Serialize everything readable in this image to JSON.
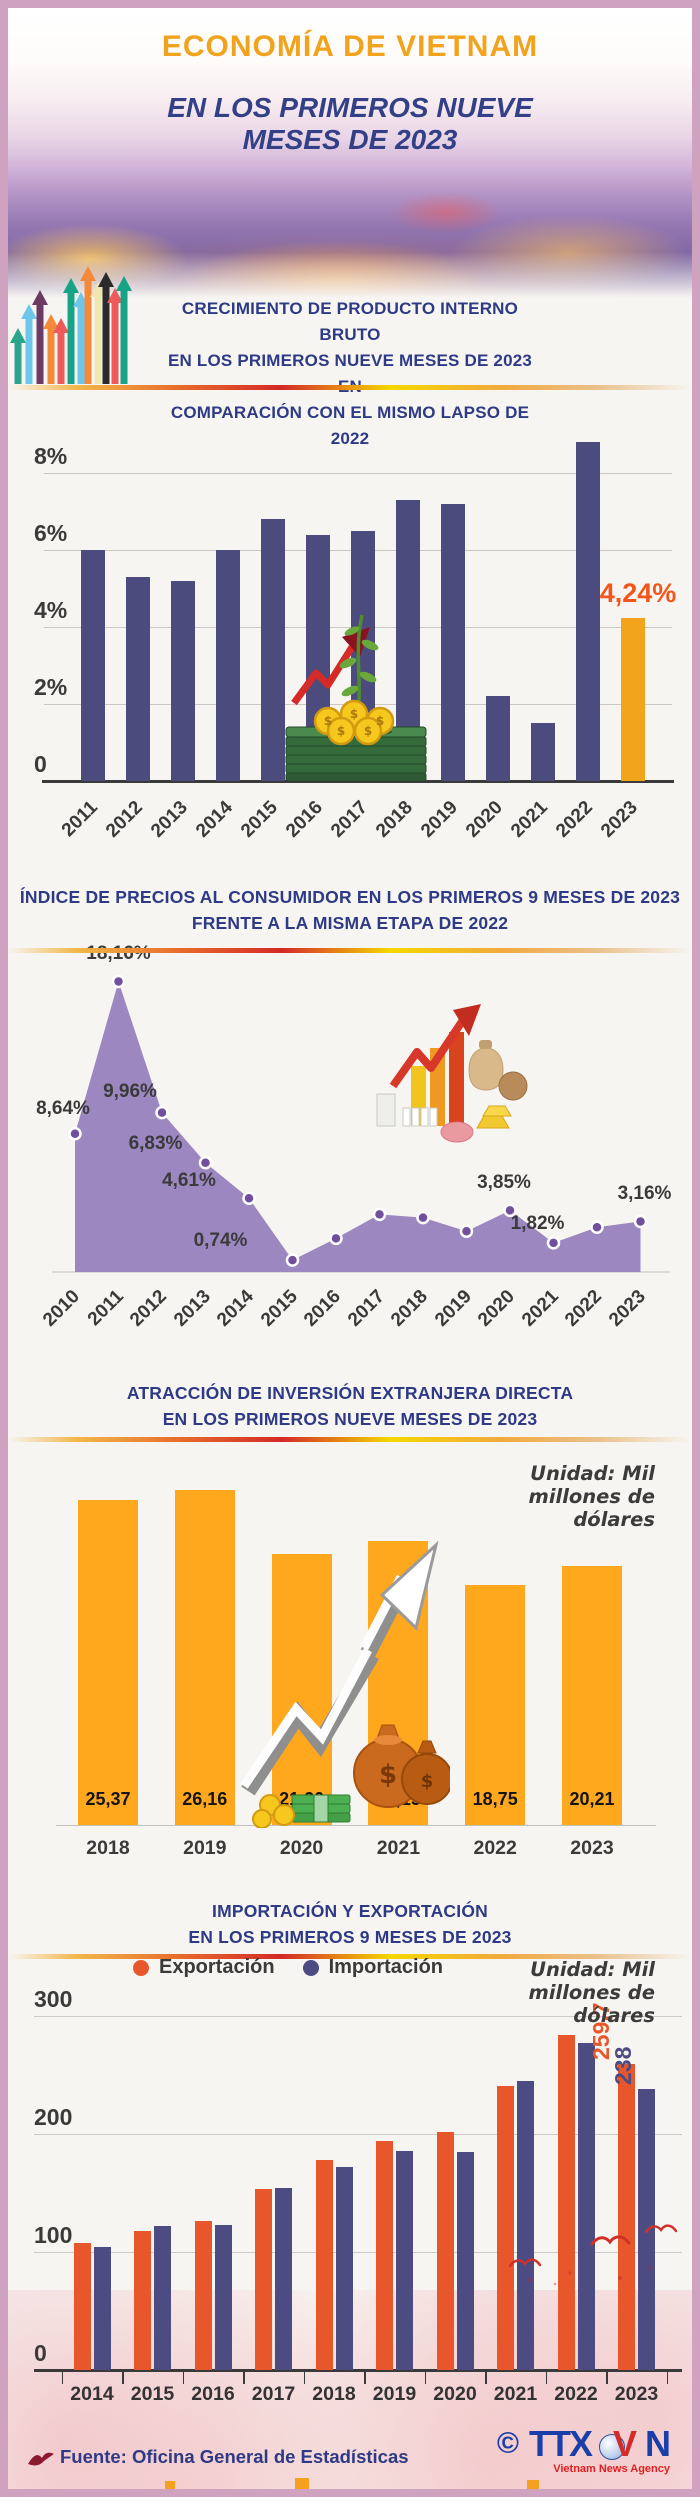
{
  "header": {
    "title": "ECONOMÍA DE VIETNAM",
    "subtitle": "EN LOS PRIMEROS NUEVE MESES DE 2023",
    "subtitle_lines": [
      "EN LOS PRIMEROS NUEVE",
      "MESES DE 2023"
    ]
  },
  "colors": {
    "accent_orange": "#F2A31D",
    "navy_title": "#2E3A85",
    "gdp_bar": "#4B4B7D",
    "gdp_highlight": "#F2A51C",
    "gdp_highlight_text": "#F2561B",
    "cpi_area": "#9D87C1",
    "cpi_dot": "#6F4F9E",
    "fdi_bar": "#FFA81E",
    "export_orange": "#E8572B",
    "import_blue": "#4C4C82",
    "frame_pink": "#CFA2BF"
  },
  "sections": {
    "gdp": {
      "title_lines": [
        "CRECIMIENTO DE PRODUCTO INTERNO BRUTO",
        "EN LOS PRIMEROS NUEVE MESES DE 2023 EN",
        "COMPARACIÓN CON EL MISMO LAPSO DE 2022"
      ]
    },
    "cpi": {
      "title_lines": [
        "ÍNDICE DE PRECIOS AL CONSUMIDOR EN LOS PRIMEROS 9 MESES DE 2023",
        "FRENTE A LA MISMA ETAPA DE 2022"
      ]
    },
    "fdi": {
      "title_lines": [
        "ATRACCIÓN DE INVERSIÓN EXTRANJERA DIRECTA",
        "EN LOS PRIMEROS NUEVE MESES DE 2023"
      ],
      "unit_lines": [
        "Unidad: Mil",
        "millones de",
        "dólares"
      ]
    },
    "trade": {
      "title_lines": [
        "IMPORTACIÓN Y EXPORTACIÓN",
        "EN LOS PRIMEROS 9 MESES DE 2023"
      ],
      "unit_lines": [
        "Unidad: Mil",
        "millones de",
        "dólares"
      ],
      "legend": [
        {
          "label": "Exportación",
          "color": "#E8572B"
        },
        {
          "label": "Importación",
          "color": "#4C4C82"
        }
      ]
    }
  },
  "footer": {
    "source": "Fuente: Oficina General de Estadísticas",
    "copyright": "©",
    "logo_ttx": "TTX",
    "logo_v": "V",
    "logo_n": "N",
    "logo_caption": "Vietnam News Agency"
  },
  "chart_data": [
    {
      "id": "gdp",
      "type": "bar",
      "title": "Crecimiento de Producto Interno Bruto, primeros 9 meses (% interanual)",
      "categories": [
        2011,
        2012,
        2013,
        2014,
        2015,
        2016,
        2017,
        2018,
        2019,
        2020,
        2021,
        2022,
        2023
      ],
      "values": [
        6.0,
        5.3,
        5.2,
        6.0,
        6.8,
        6.4,
        6.5,
        7.3,
        7.2,
        2.2,
        1.5,
        8.8,
        4.24
      ],
      "labeled_value": "4,24%",
      "highlight_index": 12,
      "yticks": [
        {
          "value": 0,
          "label": "0"
        },
        {
          "value": 2,
          "label": "2%"
        },
        {
          "value": 4,
          "label": "4%"
        },
        {
          "value": 6,
          "label": "6%"
        },
        {
          "value": 8,
          "label": "8%"
        }
      ],
      "ylim": [
        0,
        9
      ],
      "bar_color": "#4B4B7D",
      "highlight_color": "#F2A51C",
      "grid": true,
      "legend_position": "none"
    },
    {
      "id": "cpi",
      "type": "area",
      "title": "Índice de precios al consumidor, primeros 9 meses (%)",
      "categories": [
        2010,
        2011,
        2012,
        2013,
        2014,
        2015,
        2016,
        2017,
        2018,
        2019,
        2020,
        2021,
        2022,
        2023
      ],
      "values": [
        8.64,
        18.16,
        9.96,
        6.83,
        4.61,
        0.74,
        2.1,
        3.6,
        3.4,
        2.55,
        3.85,
        1.82,
        2.8,
        3.16
      ],
      "point_labels": [
        "8,64%",
        "18,16%",
        "9,96%",
        "6,83%",
        "4,61%",
        "0,74%",
        null,
        null,
        null,
        null,
        "3,85%",
        "1,82%",
        null,
        "3,16%"
      ],
      "ylim": [
        0,
        20
      ],
      "area_color": "#9D87C1",
      "dot_color": "#6F4F9E",
      "grid": false,
      "legend_position": "none"
    },
    {
      "id": "fdi",
      "type": "bar",
      "title": "Atracción de inversión extranjera directa, primeros 9 meses",
      "unit": "Mil millones de dólares",
      "categories": [
        2018,
        2019,
        2020,
        2021,
        2022,
        2023
      ],
      "values": [
        25.37,
        26.16,
        21.2,
        22.15,
        18.75,
        20.21
      ],
      "value_labels": [
        "25,37",
        "26,16",
        "21,20",
        "22,15",
        "18,75",
        "20,21"
      ],
      "ylim": [
        0,
        28
      ],
      "bar_color": "#FFA81E",
      "grid": false,
      "legend_position": "none"
    },
    {
      "id": "trade",
      "type": "bar",
      "title": "Importación y exportación, primeros 9 meses",
      "unit": "Mil millones de dólares",
      "categories": [
        2014,
        2015,
        2016,
        2017,
        2018,
        2019,
        2020,
        2021,
        2022,
        2023
      ],
      "series": [
        {
          "name": "Exportación",
          "color": "#E8572B",
          "values": [
            108,
            118,
            126,
            153,
            178,
            194,
            202,
            241,
            284,
            259.7
          ]
        },
        {
          "name": "Importación",
          "color": "#4C4C82",
          "values": [
            104,
            122,
            123,
            154,
            172,
            186,
            185,
            245,
            277,
            238
          ]
        }
      ],
      "value_labels": {
        "export_2023": "259,7",
        "import_2023": "238"
      },
      "yticks": [
        {
          "value": 0,
          "label": "0"
        },
        {
          "value": 100,
          "label": "100"
        },
        {
          "value": 200,
          "label": "200"
        },
        {
          "value": 300,
          "label": "300"
        }
      ],
      "ylim": [
        0,
        320
      ],
      "grid": true,
      "legend_position": "top"
    }
  ]
}
